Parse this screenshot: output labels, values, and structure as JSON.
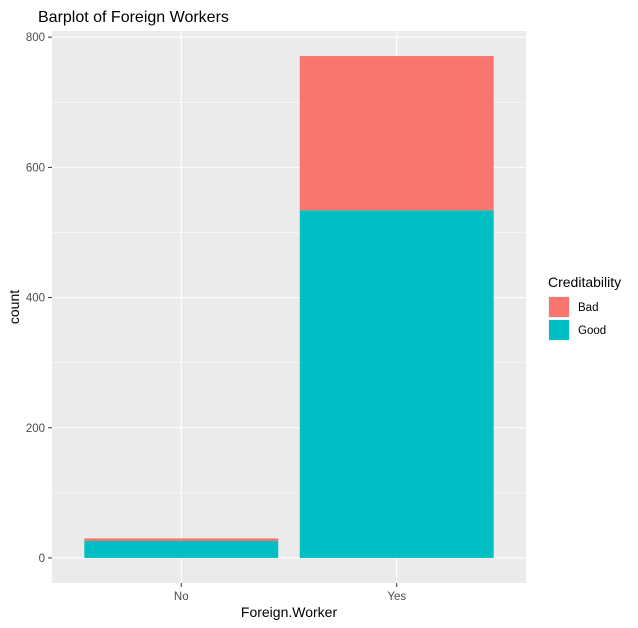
{
  "chart_data": {
    "type": "bar",
    "stacked": true,
    "title": "Barplot of Foreign Workers",
    "xlabel": "Foreign.Worker",
    "ylabel": "count",
    "categories": [
      "No",
      "Yes"
    ],
    "series": [
      {
        "name": "Good",
        "values": [
          26,
          534
        ],
        "color": "#00BFC4"
      },
      {
        "name": "Bad",
        "values": [
          4,
          237
        ],
        "color": "#F8766D"
      }
    ],
    "y_ticks": [
      0,
      200,
      400,
      600,
      800
    ],
    "y_tick_labels": [
      "0",
      "200",
      "400",
      "600",
      "800"
    ],
    "ylim": [
      -38.5,
      809.5
    ],
    "grid": true,
    "legend": {
      "title": "Creditability",
      "position": "right",
      "items": [
        {
          "label": "Bad",
          "color": "#F8766D"
        },
        {
          "label": "Good",
          "color": "#00BFC4"
        }
      ]
    }
  },
  "colors": {
    "panel_background": "#EBEBEB",
    "grid": "#FFFFFF"
  }
}
